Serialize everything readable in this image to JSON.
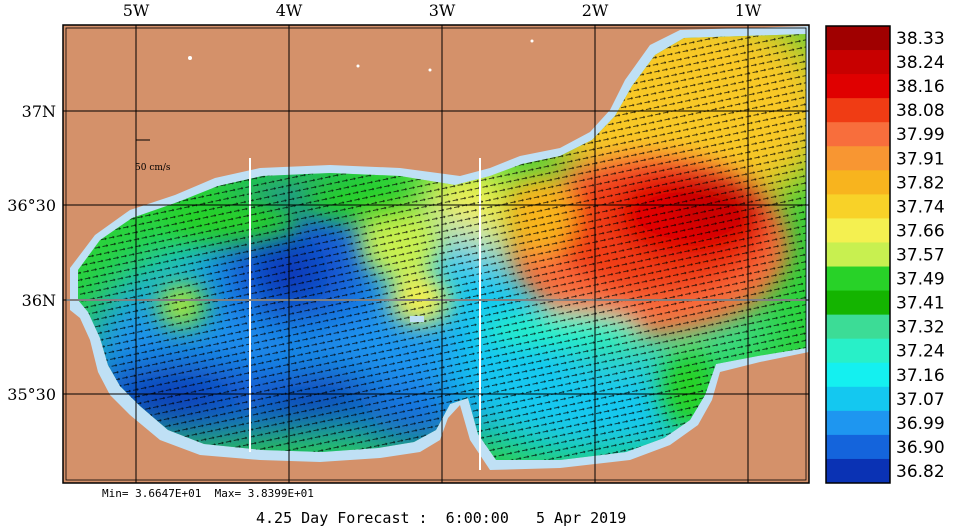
{
  "map": {
    "lon_labels": [
      "5W",
      "4W",
      "3W",
      "2W",
      "1W"
    ],
    "lat_labels": [
      "37N",
      "36°30",
      "36N",
      "35°30"
    ],
    "scale_label": "50 cm/s",
    "land_color": "#d4916a",
    "shelf_color": "#bfe0f5"
  },
  "colorbar": {
    "levels": [
      "38.33",
      "38.24",
      "38.16",
      "38.08",
      "37.99",
      "37.91",
      "37.82",
      "37.74",
      "37.66",
      "37.57",
      "37.49",
      "37.41",
      "37.32",
      "37.24",
      "37.16",
      "37.07",
      "36.99",
      "36.90",
      "36.82"
    ],
    "colors": [
      "#a00000",
      "#c80000",
      "#e00000",
      "#f03c14",
      "#f86e3c",
      "#f89632",
      "#f8b41e",
      "#f8d228",
      "#f4f050",
      "#c8f050",
      "#28d228",
      "#14b400",
      "#3cdc96",
      "#28f0c8",
      "#14f0f0",
      "#14c8f0",
      "#1e96f0",
      "#1464dc",
      "#0a32b4"
    ]
  },
  "stats": {
    "min_label": "Min= 3.6647E+01",
    "max_label": "Max= 3.8399E+01"
  },
  "caption": {
    "forecast": "4.25 Day Forecast :",
    "time": "6:00:00",
    "date": "5 Apr 2019"
  }
}
